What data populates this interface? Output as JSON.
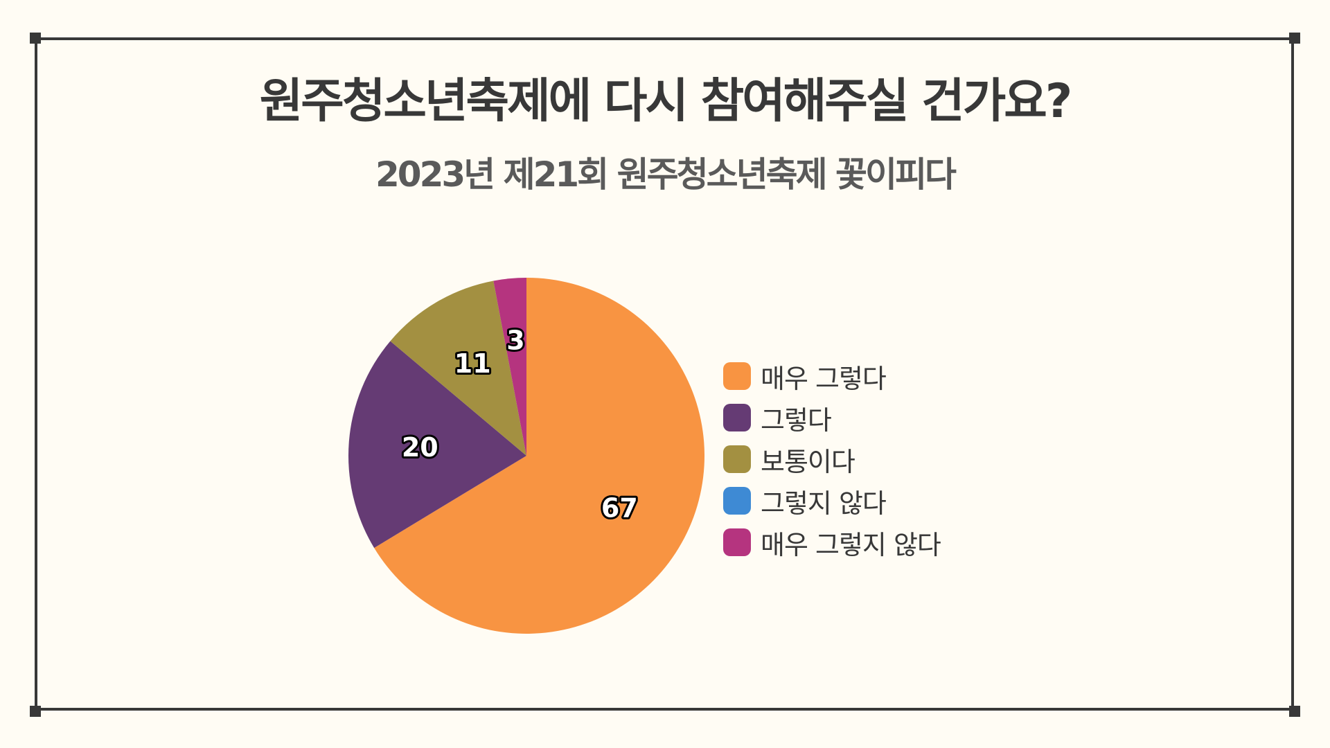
{
  "colors": {
    "background": "#fffcf4",
    "frame": "#383838",
    "title": "#383838",
    "subtitle": "#5a5a5a"
  },
  "chart_data": {
    "type": "pie",
    "title": "원주청소년축제에 다시 참여해주실 건가요?",
    "subtitle": "2023년 제21회 원주청소년축제 꽃이피다",
    "categories": [
      "매우 그렇다",
      "그렇다",
      "보통이다",
      "그렇지 않다",
      "매우 그렇지 않다"
    ],
    "values": [
      67,
      20,
      11,
      0,
      3
    ],
    "colors": [
      "#f89442",
      "#653b74",
      "#a39041",
      "#3e8ad4",
      "#b5347f"
    ],
    "legend_position": "right",
    "data_labels": true
  }
}
